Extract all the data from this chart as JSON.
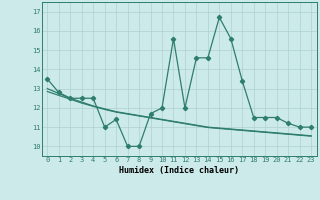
{
  "x": [
    0,
    1,
    2,
    3,
    4,
    5,
    6,
    7,
    8,
    9,
    10,
    11,
    12,
    13,
    14,
    15,
    16,
    17,
    18,
    19,
    20,
    21,
    22,
    23
  ],
  "y_main": [
    13.5,
    12.8,
    12.5,
    12.5,
    12.5,
    11.0,
    11.4,
    10.0,
    10.0,
    11.7,
    12.0,
    15.6,
    12.0,
    14.6,
    14.6,
    16.7,
    15.6,
    13.4,
    11.5,
    11.5,
    11.5,
    11.2,
    11.0,
    11.0
  ],
  "trend1": [
    13.0,
    12.75,
    12.5,
    12.3,
    12.1,
    11.95,
    11.8,
    11.7,
    11.6,
    11.5,
    11.4,
    11.3,
    11.2,
    11.1,
    11.0,
    10.95,
    10.9,
    10.85,
    10.8,
    10.75,
    10.7,
    10.65,
    10.6,
    10.55
  ],
  "trend2": [
    12.85,
    12.65,
    12.45,
    12.25,
    12.08,
    11.92,
    11.78,
    11.68,
    11.58,
    11.48,
    11.38,
    11.28,
    11.18,
    11.08,
    10.98,
    10.93,
    10.88,
    10.83,
    10.78,
    10.73,
    10.68,
    10.63,
    10.58,
    10.53
  ],
  "line_color": "#2e7d6e",
  "bg_color": "#cdeaea",
  "grid_color": "#afd0d0",
  "xlabel": "Humidex (Indice chaleur)",
  "xlim": [
    -0.5,
    23.5
  ],
  "ylim": [
    9.5,
    17.5
  ],
  "yticks": [
    10,
    11,
    12,
    13,
    14,
    15,
    16,
    17
  ],
  "xticks": [
    0,
    1,
    2,
    3,
    4,
    5,
    6,
    7,
    8,
    9,
    10,
    11,
    12,
    13,
    14,
    15,
    16,
    17,
    18,
    19,
    20,
    21,
    22,
    23
  ],
  "marker": "D",
  "markersize": 2.2,
  "linewidth": 0.9
}
